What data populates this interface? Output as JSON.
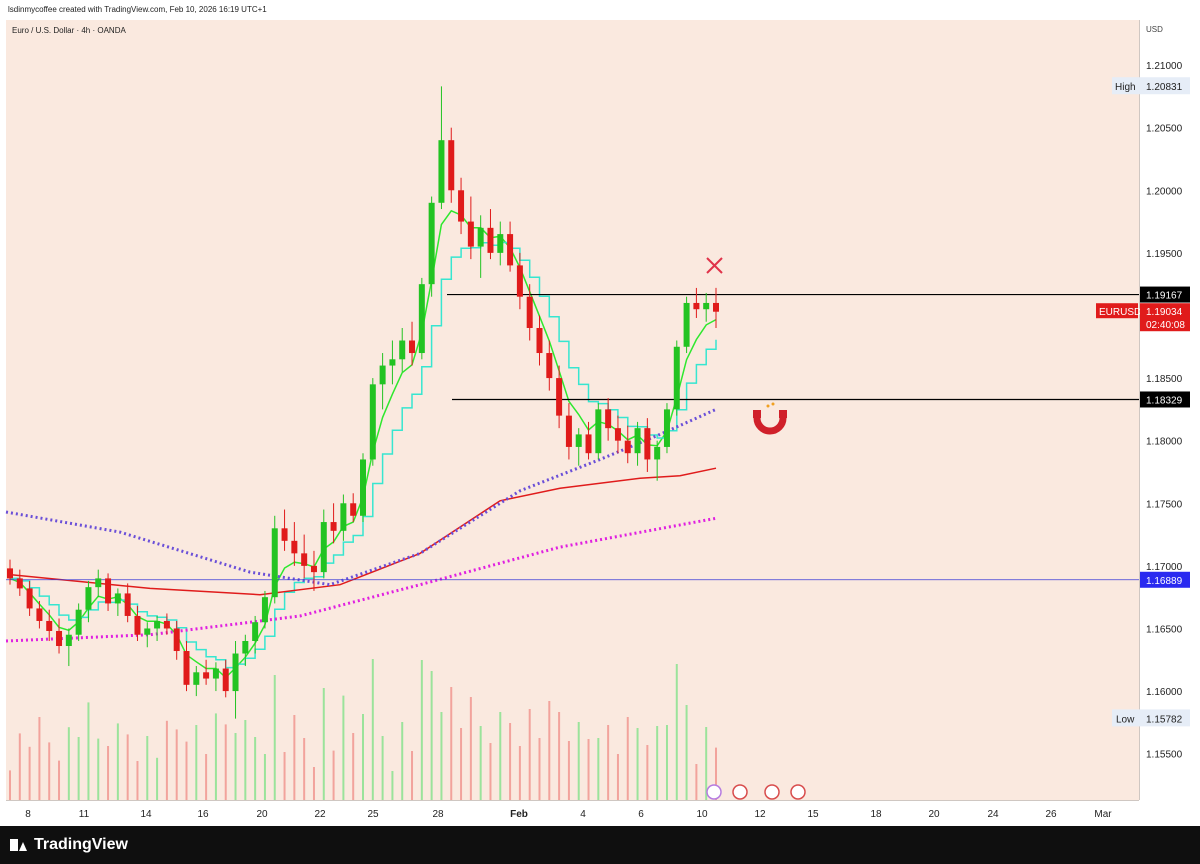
{
  "header": {
    "created_by": "lsdinmycoffee created with TradingView.com, Feb 10, 2026 16:19 UTC+1",
    "symbol_title": "Euro / U.S. Dollar · 4h · OANDA"
  },
  "footer": {
    "brand": "TradingView"
  },
  "chart_data": {
    "type": "candlestick",
    "symbol": "EURUSD",
    "currency": "USD",
    "price_ticks": [
      "1.21000",
      "1.20500",
      "1.20000",
      "1.19500",
      "1.18500",
      "1.18000",
      "1.17500",
      "1.17000",
      "1.16500",
      "1.16000",
      "1.15500"
    ],
    "price_tick_values": [
      1.21,
      1.205,
      1.2,
      1.195,
      1.185,
      1.18,
      1.175,
      1.17,
      1.165,
      1.16,
      1.155
    ],
    "ylim": [
      1.1513,
      1.2136
    ],
    "time_ticks": [
      "8",
      "11",
      "14",
      "16",
      "20",
      "22",
      "25",
      "28",
      "Feb",
      "4",
      "6",
      "10",
      "12",
      "15",
      "18",
      "20",
      "24",
      "26",
      "Mar"
    ],
    "high_label": "High",
    "high_value": "1.20831",
    "low_label": "Low",
    "low_value": "1.15782",
    "current_label": "EURUSD",
    "current_price": "1.19034",
    "countdown": "02:40:08",
    "horizontal_lines": [
      {
        "label": "1.19167",
        "value": 1.19167,
        "color": "#000000"
      },
      {
        "label": "1.18329",
        "value": 1.18329,
        "color": "#000000"
      },
      {
        "label": "1.16889",
        "value": 1.16889,
        "color": "#3b3bd6"
      }
    ],
    "colors": {
      "up": "#22c322",
      "down": "#e01b1b",
      "background": "#fae9df",
      "ema_fast": "#2ee82e",
      "ema_slow": "#36e6d0",
      "ma_red": "#e01b1b",
      "dotted_purple": "#6a4fd8",
      "dotted_magenta": "#e020e0",
      "vol_up": "#9be39b",
      "vol_down": "#f2a39c"
    },
    "candles_ohlc": [
      [
        1.1698,
        1.1705,
        1.1685,
        1.169
      ],
      [
        1.169,
        1.1697,
        1.1676,
        1.1682
      ],
      [
        1.1682,
        1.1688,
        1.166,
        1.1666
      ],
      [
        1.1666,
        1.1672,
        1.165,
        1.1656
      ],
      [
        1.1656,
        1.1665,
        1.164,
        1.1648
      ],
      [
        1.1648,
        1.1658,
        1.163,
        1.1636
      ],
      [
        1.1636,
        1.165,
        1.162,
        1.1645
      ],
      [
        1.1645,
        1.167,
        1.164,
        1.1665
      ],
      [
        1.1665,
        1.1688,
        1.1655,
        1.1683
      ],
      [
        1.1683,
        1.1697,
        1.1675,
        1.169
      ],
      [
        1.169,
        1.1694,
        1.1664,
        1.167
      ],
      [
        1.167,
        1.1682,
        1.166,
        1.1678
      ],
      [
        1.1678,
        1.1686,
        1.1655,
        1.166
      ],
      [
        1.166,
        1.1668,
        1.164,
        1.1645
      ],
      [
        1.1645,
        1.1655,
        1.1635,
        1.165
      ],
      [
        1.165,
        1.166,
        1.164,
        1.1656
      ],
      [
        1.1656,
        1.1662,
        1.1645,
        1.165
      ],
      [
        1.165,
        1.1656,
        1.1625,
        1.1632
      ],
      [
        1.1632,
        1.164,
        1.16,
        1.1605
      ],
      [
        1.1605,
        1.162,
        1.1596,
        1.1615
      ],
      [
        1.1615,
        1.1625,
        1.1605,
        1.161
      ],
      [
        1.161,
        1.1623,
        1.16,
        1.1618
      ],
      [
        1.1618,
        1.1625,
        1.1595,
        1.16
      ],
      [
        1.16,
        1.164,
        1.1578,
        1.163
      ],
      [
        1.163,
        1.1645,
        1.162,
        1.164
      ],
      [
        1.164,
        1.166,
        1.163,
        1.1655
      ],
      [
        1.1655,
        1.168,
        1.165,
        1.1675
      ],
      [
        1.1675,
        1.174,
        1.167,
        1.173
      ],
      [
        1.173,
        1.1745,
        1.1712,
        1.172
      ],
      [
        1.172,
        1.1735,
        1.17,
        1.171
      ],
      [
        1.171,
        1.1725,
        1.169,
        1.17
      ],
      [
        1.17,
        1.1712,
        1.168,
        1.1695
      ],
      [
        1.1695,
        1.1745,
        1.169,
        1.1735
      ],
      [
        1.1735,
        1.175,
        1.1718,
        1.1728
      ],
      [
        1.1728,
        1.1757,
        1.172,
        1.175
      ],
      [
        1.175,
        1.1758,
        1.1735,
        1.174
      ],
      [
        1.174,
        1.179,
        1.1735,
        1.1785
      ],
      [
        1.1785,
        1.185,
        1.178,
        1.1845
      ],
      [
        1.1845,
        1.187,
        1.1825,
        1.186
      ],
      [
        1.186,
        1.188,
        1.1845,
        1.1865
      ],
      [
        1.1865,
        1.189,
        1.1855,
        1.188
      ],
      [
        1.188,
        1.1895,
        1.186,
        1.187
      ],
      [
        1.187,
        1.193,
        1.1865,
        1.1925
      ],
      [
        1.1925,
        1.1995,
        1.1915,
        1.199
      ],
      [
        1.199,
        1.2083,
        1.1985,
        1.204
      ],
      [
        1.204,
        1.205,
        1.199,
        1.2
      ],
      [
        1.2,
        1.201,
        1.1965,
        1.1975
      ],
      [
        1.1975,
        1.1995,
        1.1945,
        1.1955
      ],
      [
        1.1955,
        1.198,
        1.193,
        1.197
      ],
      [
        1.197,
        1.1985,
        1.1945,
        1.195
      ],
      [
        1.195,
        1.1975,
        1.194,
        1.1965
      ],
      [
        1.1965,
        1.1975,
        1.1935,
        1.194
      ],
      [
        1.194,
        1.195,
        1.1905,
        1.1915
      ],
      [
        1.1915,
        1.1925,
        1.188,
        1.189
      ],
      [
        1.189,
        1.19,
        1.186,
        1.187
      ],
      [
        1.187,
        1.188,
        1.184,
        1.185
      ],
      [
        1.185,
        1.186,
        1.181,
        1.182
      ],
      [
        1.182,
        1.183,
        1.1785,
        1.1795
      ],
      [
        1.1795,
        1.181,
        1.178,
        1.1805
      ],
      [
        1.1805,
        1.1815,
        1.1785,
        1.179
      ],
      [
        1.179,
        1.183,
        1.1785,
        1.1825
      ],
      [
        1.1825,
        1.1834,
        1.18,
        1.181
      ],
      [
        1.181,
        1.182,
        1.179,
        1.18
      ],
      [
        1.18,
        1.1812,
        1.1782,
        1.179
      ],
      [
        1.179,
        1.1815,
        1.178,
        1.181
      ],
      [
        1.181,
        1.1818,
        1.1775,
        1.1785
      ],
      [
        1.1785,
        1.18,
        1.1768,
        1.1795
      ],
      [
        1.1795,
        1.183,
        1.179,
        1.1825
      ],
      [
        1.1825,
        1.188,
        1.182,
        1.1875
      ],
      [
        1.1875,
        1.1915,
        1.187,
        1.191
      ],
      [
        1.191,
        1.1922,
        1.1898,
        1.1905
      ],
      [
        1.1905,
        1.1918,
        1.1895,
        1.191
      ],
      [
        1.191,
        1.1922,
        1.189,
        1.1903
      ]
    ]
  }
}
